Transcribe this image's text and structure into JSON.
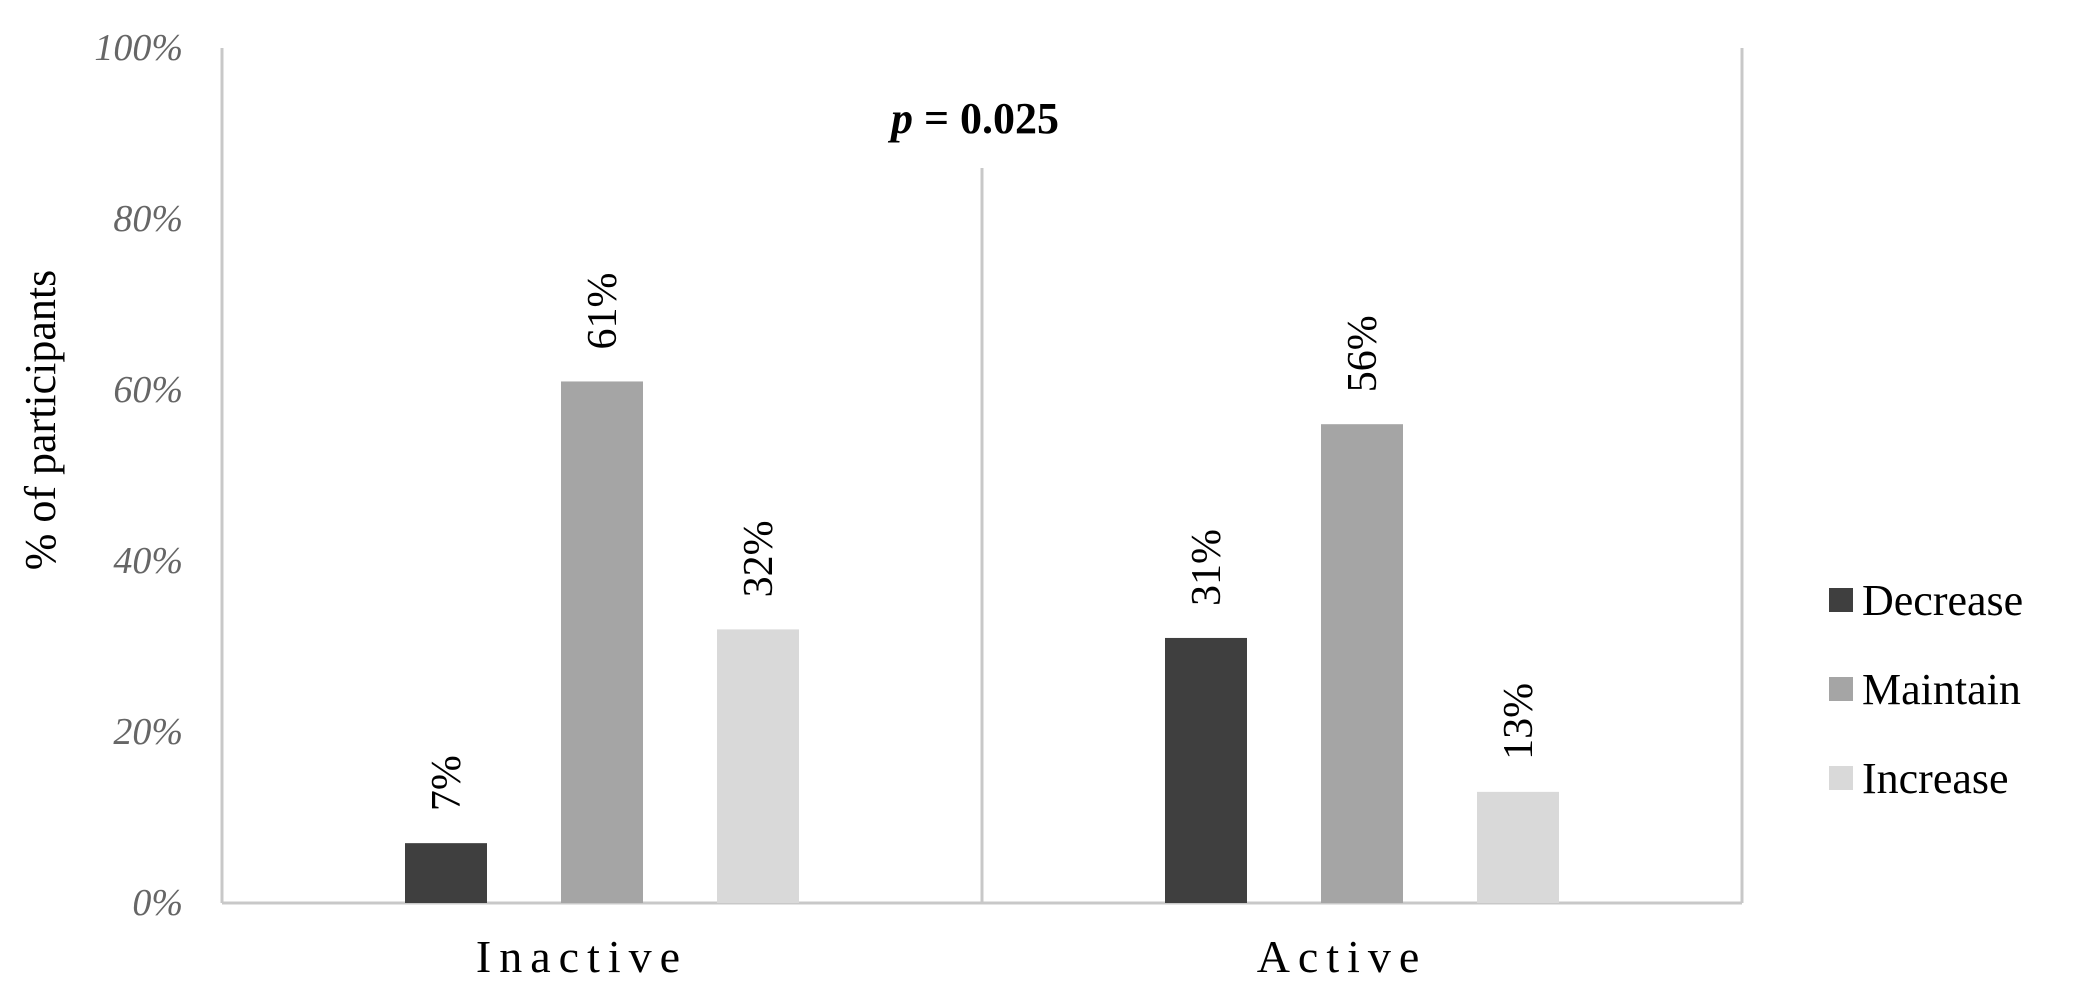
{
  "chart_data": {
    "type": "bar",
    "categories": [
      "Inactive",
      "Active"
    ],
    "series": [
      {
        "name": "Decrease",
        "values": [
          7,
          31
        ],
        "labels": [
          "7%",
          "31%"
        ],
        "color": "#3f3f3f"
      },
      {
        "name": "Maintain",
        "values": [
          61,
          56
        ],
        "labels": [
          "61%",
          "56%"
        ],
        "color": "#a5a5a5"
      },
      {
        "name": "Increase",
        "values": [
          32,
          13
        ],
        "labels": [
          "32%",
          "13%"
        ],
        "color": "#d9d9d9"
      }
    ],
    "ylabel": "% of participants",
    "ylim": [
      0,
      100
    ],
    "yticks": [
      0,
      20,
      40,
      60,
      80,
      100
    ],
    "ytick_labels": [
      "0%",
      "20%",
      "40%",
      "60%",
      "80%",
      "100%"
    ],
    "annotation": {
      "p": "p",
      "rest": " = 0.025"
    },
    "legend_position": "right",
    "grid": false
  }
}
